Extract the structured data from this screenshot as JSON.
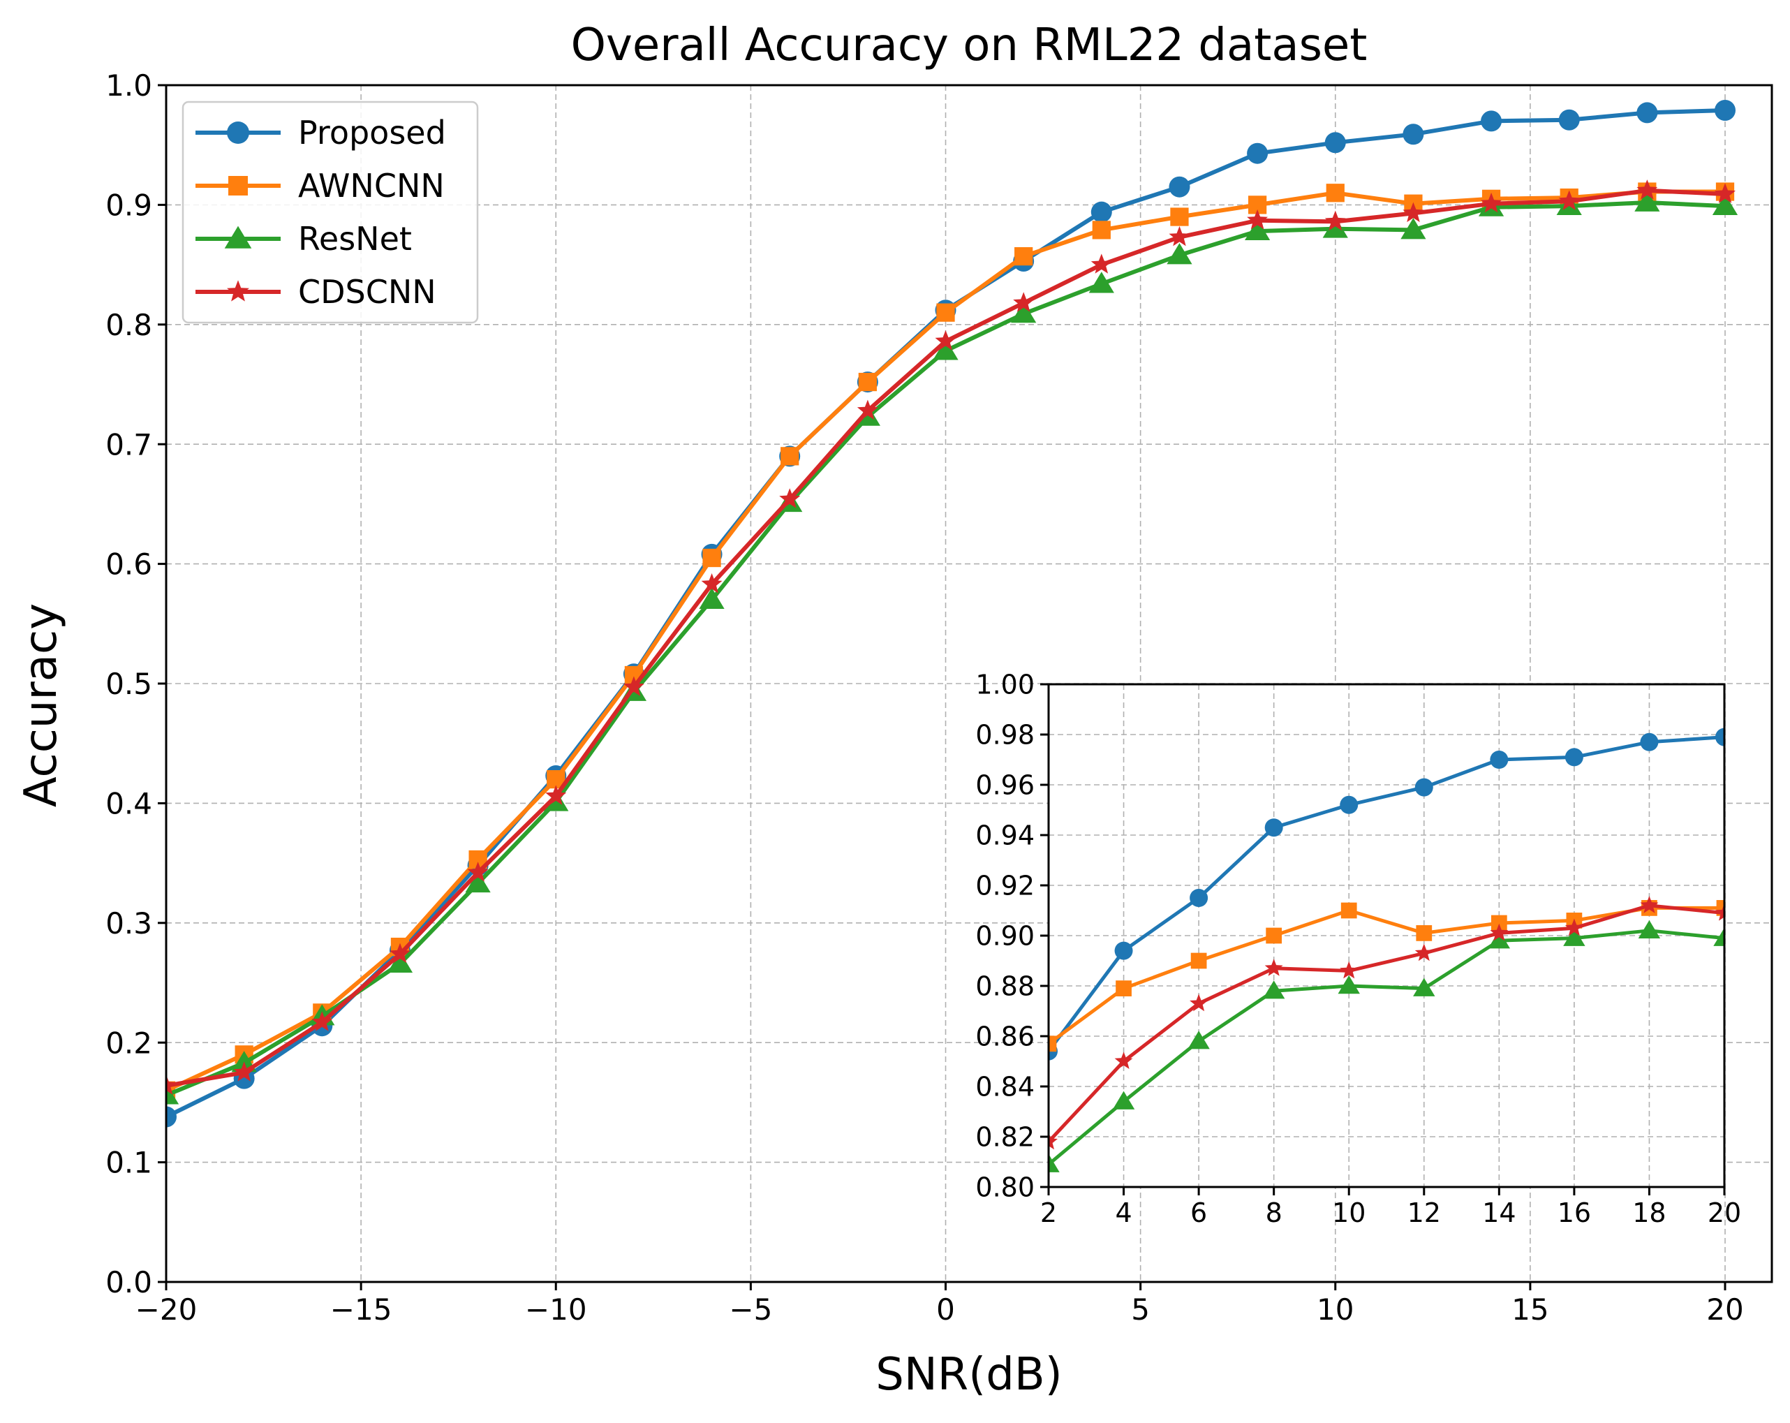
{
  "chart_data": [
    {
      "type": "line",
      "title": "Overall Accuracy on RML22 dataset",
      "xlabel": "SNR(dB)",
      "ylabel": "Accuracy",
      "xlim": [
        -20,
        21.2
      ],
      "ylim": [
        0.0,
        1.0
      ],
      "xticks": [
        "−20",
        "−15",
        "−10",
        "−5",
        "0",
        "5",
        "10",
        "15",
        "20"
      ],
      "xtick_values": [
        -20,
        -15,
        -10,
        -5,
        0,
        5,
        10,
        15,
        20
      ],
      "yticks": [
        "0.0",
        "0.1",
        "0.2",
        "0.3",
        "0.4",
        "0.5",
        "0.6",
        "0.7",
        "0.8",
        "0.9",
        "1.0"
      ],
      "ytick_values": [
        0.0,
        0.1,
        0.2,
        0.3,
        0.4,
        0.5,
        0.6,
        0.7,
        0.8,
        0.9,
        1.0
      ],
      "grid": true,
      "legend_position": "top-left",
      "x": [
        -20,
        -18,
        -16,
        -14,
        -12,
        -10,
        -8,
        -6,
        -4,
        -2,
        0,
        2,
        4,
        6,
        8,
        10,
        12,
        14,
        16,
        18,
        20
      ],
      "series": [
        {
          "name": "Proposed",
          "color": "#1f77b4",
          "marker": "circle",
          "values": [
            0.138,
            0.17,
            0.214,
            0.277,
            0.348,
            0.423,
            0.508,
            0.608,
            0.69,
            0.752,
            0.812,
            0.853,
            0.894,
            0.915,
            0.943,
            0.952,
            0.959,
            0.97,
            0.971,
            0.977,
            0.979
          ]
        },
        {
          "name": "AWNCNN",
          "color": "#ff7f0e",
          "marker": "square",
          "values": [
            0.16,
            0.19,
            0.225,
            0.28,
            0.353,
            0.42,
            0.507,
            0.605,
            0.69,
            0.752,
            0.81,
            0.857,
            0.879,
            0.89,
            0.9,
            0.91,
            0.901,
            0.905,
            0.906,
            0.911,
            0.911
          ]
        },
        {
          "name": "ResNet",
          "color": "#2ca02c",
          "marker": "triangle",
          "values": [
            0.156,
            0.183,
            0.222,
            0.266,
            0.333,
            0.401,
            0.493,
            0.57,
            0.651,
            0.723,
            0.778,
            0.809,
            0.834,
            0.858,
            0.878,
            0.88,
            0.879,
            0.898,
            0.899,
            0.902,
            0.899
          ]
        },
        {
          "name": "CDSCNN",
          "color": "#d62728",
          "marker": "star",
          "values": [
            0.164,
            0.175,
            0.217,
            0.274,
            0.342,
            0.406,
            0.497,
            0.583,
            0.654,
            0.728,
            0.786,
            0.818,
            0.85,
            0.873,
            0.887,
            0.886,
            0.893,
            0.901,
            0.903,
            0.912,
            0.909
          ]
        }
      ]
    },
    {
      "type": "line",
      "title": "",
      "xlabel": "",
      "ylabel": "",
      "xlim": [
        2,
        20
      ],
      "ylim": [
        0.8,
        1.0
      ],
      "xticks": [
        "2",
        "4",
        "6",
        "8",
        "10",
        "12",
        "14",
        "16",
        "18",
        "20"
      ],
      "xtick_values": [
        2,
        4,
        6,
        8,
        10,
        12,
        14,
        16,
        18,
        20
      ],
      "yticks": [
        "0.80",
        "0.82",
        "0.84",
        "0.86",
        "0.88",
        "0.90",
        "0.92",
        "0.94",
        "0.96",
        "0.98",
        "1.00"
      ],
      "ytick_values": [
        0.8,
        0.82,
        0.84,
        0.86,
        0.88,
        0.9,
        0.92,
        0.94,
        0.96,
        0.98,
        1.0
      ],
      "grid": true,
      "x": [
        2,
        4,
        6,
        8,
        10,
        12,
        14,
        16,
        18,
        20
      ],
      "series": [
        {
          "name": "Proposed",
          "color": "#1f77b4",
          "marker": "circle",
          "values": [
            0.854,
            0.894,
            0.915,
            0.943,
            0.952,
            0.959,
            0.97,
            0.971,
            0.977,
            0.979
          ]
        },
        {
          "name": "AWNCNN",
          "color": "#ff7f0e",
          "marker": "square",
          "values": [
            0.857,
            0.879,
            0.89,
            0.9,
            0.91,
            0.901,
            0.905,
            0.906,
            0.911,
            0.911
          ]
        },
        {
          "name": "ResNet",
          "color": "#2ca02c",
          "marker": "triangle",
          "values": [
            0.809,
            0.834,
            0.858,
            0.878,
            0.88,
            0.879,
            0.898,
            0.899,
            0.902,
            0.899
          ]
        },
        {
          "name": "CDSCNN",
          "color": "#d62728",
          "marker": "star",
          "values": [
            0.818,
            0.85,
            0.873,
            0.887,
            0.886,
            0.893,
            0.901,
            0.903,
            0.912,
            0.909
          ]
        }
      ]
    }
  ]
}
